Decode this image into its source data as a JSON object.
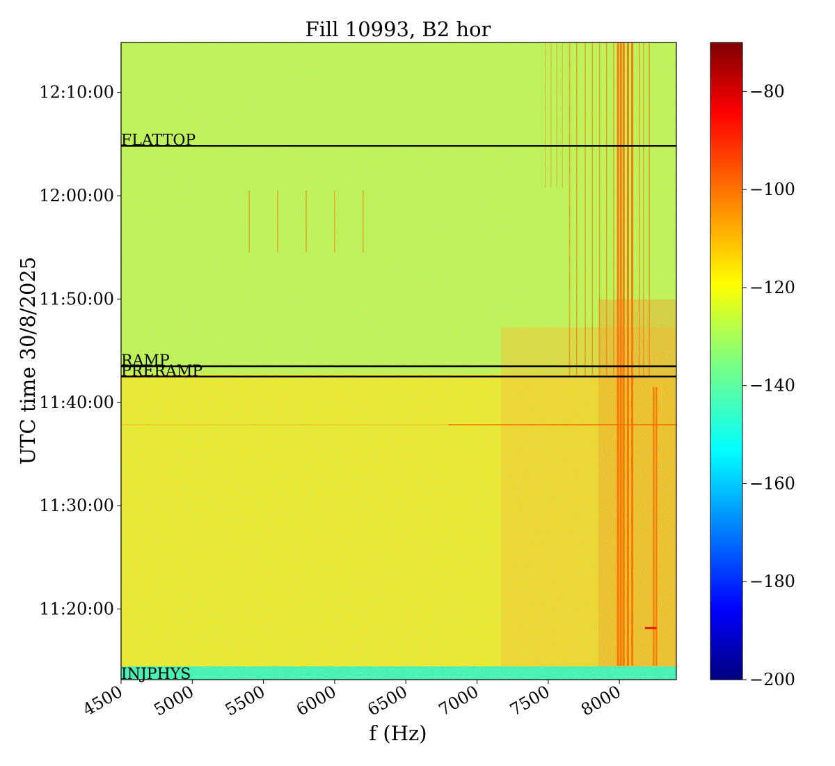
{
  "chart_data": {
    "type": "heatmap",
    "title": "Fill 10993, B2 hor",
    "xlabel": "f (Hz)",
    "ylabel": "UTC time 30/8/2025",
    "xlim": [
      4500,
      8400
    ],
    "x_ticks": [
      "4500",
      "5000",
      "5500",
      "6000",
      "6500",
      "7000",
      "7500",
      "8000"
    ],
    "y_ticks": [
      "11:20:00",
      "11:30:00",
      "11:40:00",
      "11:50:00",
      "12:00:00",
      "12:10:00"
    ],
    "ylim": [
      "11:13:10",
      "12:14:50"
    ],
    "colorbar": {
      "range": [
        -200,
        -70
      ],
      "ticks": [
        "−80",
        "−100",
        "−120",
        "−140",
        "−160",
        "−180",
        "−200"
      ],
      "colormap": "jet"
    },
    "phase_markers": [
      {
        "label": "FLATTOP",
        "time": "12:04:50"
      },
      {
        "label": "RAMP",
        "time": "11:43:30"
      },
      {
        "label": "PRERAMP",
        "time": "11:42:30"
      },
      {
        "label": "INJPHYS",
        "time": "11:13:10"
      }
    ],
    "colors": {
      "background": "#d9f23a",
      "quiet_region": "#b5f25a",
      "noisy_region": "#f5e21e",
      "hot_lines": "#ff6a00",
      "injection_band": "#3ff2b8"
    }
  }
}
